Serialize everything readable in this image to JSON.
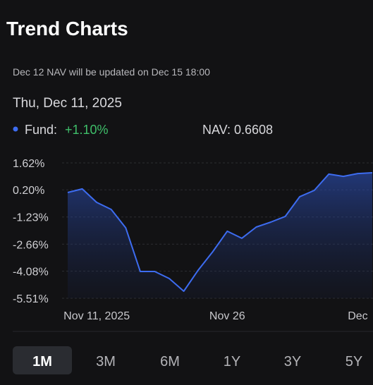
{
  "header": {
    "title": "Trend Charts"
  },
  "notice": "Dec 12 NAV will be updated on Dec 15 18:00",
  "date": "Thu, Dec 11, 2025",
  "legend": {
    "fund_value": "+1.10%",
    "nav": "NAV: 0.6608"
  },
  "chart_data": {
    "type": "line",
    "categories": [
      null,
      null,
      "Nov 11, 2025",
      null,
      null,
      null,
      null,
      null,
      null,
      null,
      null,
      "Nov 26",
      null,
      null,
      null,
      null,
      null,
      null,
      null,
      null,
      "Dec",
      null
    ],
    "series": [
      {
        "name": "Fund:",
        "color": "#3d6cf0",
        "values": [
          0.06,
          0.25,
          -0.46,
          -0.83,
          -1.8,
          -4.1,
          -4.1,
          -4.47,
          -5.14,
          -4.03,
          -3.06,
          -1.98,
          -2.35,
          -1.76,
          -1.5,
          -1.2,
          -0.16,
          0.17,
          1.03,
          0.91,
          1.06,
          1.1
        ]
      }
    ],
    "ylim": [
      -5.51,
      1.62
    ],
    "yticks": [
      {
        "value": 1.62,
        "label": "1.62%"
      },
      {
        "value": 0.2,
        "label": "0.20%"
      },
      {
        "value": -1.23,
        "label": "-1.23%"
      },
      {
        "value": -2.66,
        "label": "-2.66%"
      },
      {
        "value": -4.08,
        "label": "-4.08%"
      },
      {
        "value": -5.51,
        "label": "-5.51%"
      }
    ],
    "grid": true
  },
  "ranges": [
    "1M",
    "3M",
    "6M",
    "1Y",
    "3Y",
    "5Y"
  ],
  "selected_range": 0
}
